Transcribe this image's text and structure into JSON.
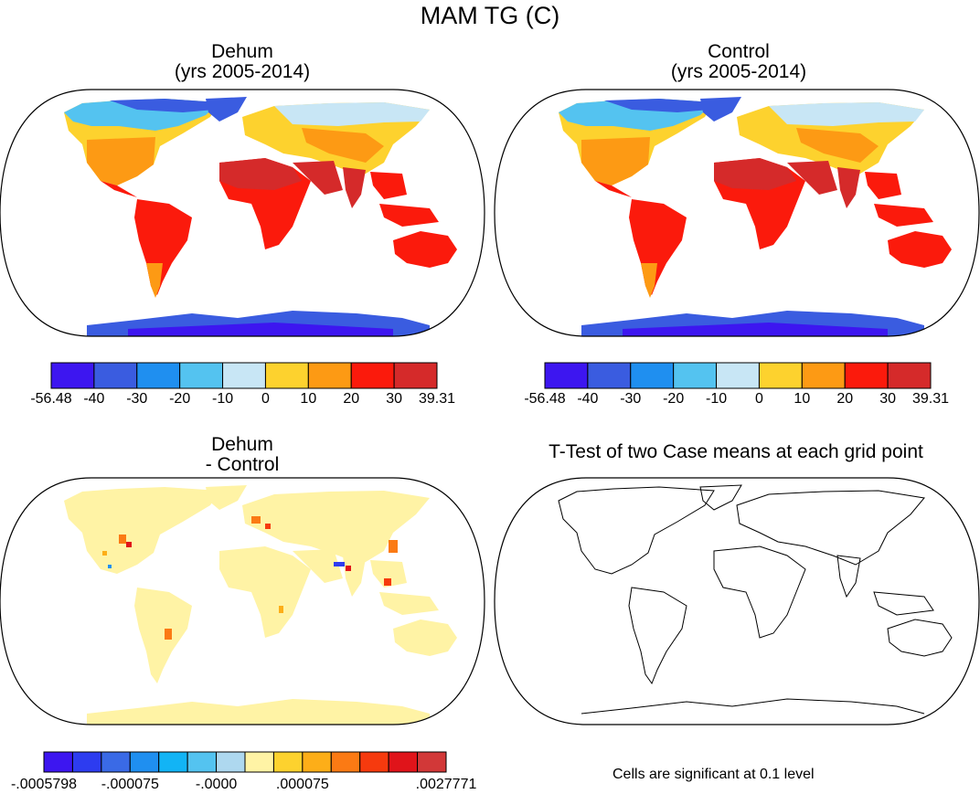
{
  "figure": {
    "title": "MAM TG (C)"
  },
  "panels": [
    {
      "id": "dehum",
      "title_line1": "Dehum",
      "title_line2": "(yrs 2005-2014)",
      "colorbar": {
        "colors": [
          "#3d16f0",
          "#3a5ce0",
          "#1f8ff0",
          "#54c3f0",
          "#c8e6f5",
          "#fdd22e",
          "#fd9a14",
          "#fb1a0c",
          "#d52a2a"
        ],
        "labels": [
          "-56.48",
          "-40",
          "-30",
          "-20",
          "-10",
          "0",
          "10",
          "20",
          "30",
          "39.31"
        ]
      }
    },
    {
      "id": "control",
      "title_line1": "Control",
      "title_line2": "(yrs 2005-2014)",
      "colorbar": {
        "colors": [
          "#3d16f0",
          "#3a5ce0",
          "#1f8ff0",
          "#54c3f0",
          "#c8e6f5",
          "#fdd22e",
          "#fd9a14",
          "#fb1a0c",
          "#d52a2a"
        ],
        "labels": [
          "-56.48",
          "-40",
          "-30",
          "-20",
          "-10",
          "0",
          "10",
          "20",
          "30",
          "39.31"
        ]
      }
    },
    {
      "id": "difference",
      "title_line1": "Dehum",
      "title_line2": "- Control",
      "colorbar": {
        "colors": [
          "#3d16f0",
          "#2d3cf0",
          "#3a6ae6",
          "#1f8ff0",
          "#12b4f5",
          "#54c3f0",
          "#aed8ef",
          "#fff3a5",
          "#fdd22e",
          "#fdae18",
          "#fb7a14",
          "#f63a0e",
          "#e0141a",
          "#d23838"
        ],
        "labels": [
          "-.0005798",
          "-.000075",
          "-.0000",
          ".000075",
          ".0027771"
        ]
      }
    },
    {
      "id": "ttest",
      "title_line1": "T-Test of two Case means at each grid point",
      "note": "Cells are significant at 0.1 level"
    }
  ]
}
